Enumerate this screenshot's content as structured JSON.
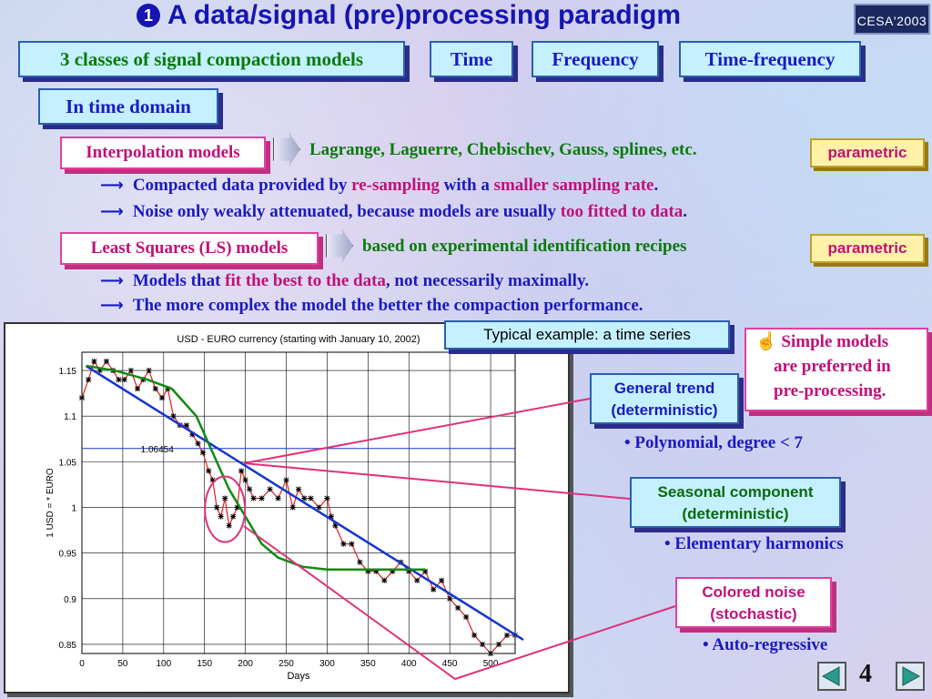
{
  "title": "A data/signal (pre)processing paradigm",
  "title_bullet": "1",
  "badge": "CESA'2003",
  "classes_label": "3 classes of signal compaction models",
  "domains": [
    "Time",
    "Frequency",
    "Time-frequency"
  ],
  "section": "In time domain",
  "interpolation": {
    "label": "Interpolation models",
    "desc": "Lagrange, Laguerre, Chebischev, Gauss, splines, etc.",
    "tag": "parametric",
    "line1": {
      "a": "Compacted data provided by ",
      "b": "re-sampling",
      "c": " with a ",
      "d": "smaller sampling rate",
      "e": "."
    },
    "line2": {
      "a": "Noise only weakly attenuated, because models are usually ",
      "b": "too fitted to data",
      "c": "."
    }
  },
  "ls": {
    "label": "Least Squares (LS) models",
    "desc": "based on experimental identification recipes",
    "tag": "parametric",
    "line1": {
      "a": "Models that ",
      "b": "fit the best to the data",
      "c": ", not necessarily maximally."
    },
    "line2": "The more complex the model the better the compaction performance."
  },
  "arrow_glyph": "⟶",
  "example_label": "Typical example: a time series",
  "simple_note": {
    "icon": "☝",
    "l1": "Simple models",
    "l2": "are preferred in",
    "l3": "pre-processing."
  },
  "components": [
    {
      "l1": "General trend",
      "l2": "(deterministic)",
      "note": "Polynomial, degree < 7"
    },
    {
      "l1": "Seasonal component",
      "l2": "(deterministic)",
      "note": "Elementary harmonics"
    },
    {
      "l1": "Colored noise",
      "l2": "(stochastic)",
      "note": "Auto-regressive"
    }
  ],
  "bullet": "•",
  "page_number": "4",
  "colors": {
    "trend": "#1535d0",
    "data": "#e02020",
    "seasonal": "#108a10",
    "highlight": "#e0307a"
  },
  "chart_data": {
    "type": "line",
    "title": "USD - EURO currency (starting with January 10, 2002)",
    "xlabel": "Days",
    "ylabel": "1 USD = * EURO",
    "xlim": [
      0,
      530
    ],
    "ylim": [
      0.84,
      1.17
    ],
    "xticks": [
      0,
      50,
      100,
      150,
      200,
      250,
      300,
      350,
      400,
      450,
      500
    ],
    "yticks": [
      0.85,
      0.9,
      0.95,
      1,
      1.05,
      1.1,
      1.15
    ],
    "grid": true,
    "reference_line": {
      "y": 1.06454,
      "label": "1.06454"
    },
    "series": [
      {
        "kind": "data",
        "x": [
          0,
          8,
          15,
          22,
          30,
          38,
          45,
          52,
          60,
          68,
          75,
          82,
          90,
          98,
          105,
          112,
          120,
          128,
          135,
          142,
          148,
          155,
          160,
          165,
          170,
          175,
          180,
          185,
          190,
          195,
          200,
          205,
          210,
          220,
          230,
          240,
          250,
          258,
          265,
          272,
          280,
          290,
          300,
          305,
          310,
          320,
          330,
          340,
          350,
          360,
          370,
          380,
          390,
          400,
          410,
          420,
          430,
          440,
          450,
          460,
          470,
          480,
          490,
          500,
          510,
          520,
          530
        ],
        "y": [
          1.12,
          1.14,
          1.16,
          1.15,
          1.16,
          1.15,
          1.14,
          1.14,
          1.15,
          1.13,
          1.14,
          1.15,
          1.13,
          1.12,
          1.13,
          1.1,
          1.09,
          1.09,
          1.08,
          1.07,
          1.06,
          1.04,
          1.03,
          1.0,
          0.99,
          1.01,
          0.98,
          0.99,
          1.0,
          1.04,
          1.03,
          1.02,
          1.01,
          1.01,
          1.02,
          1.01,
          1.03,
          1.0,
          1.02,
          1.01,
          1.01,
          1.0,
          1.01,
          0.99,
          0.98,
          0.96,
          0.96,
          0.94,
          0.93,
          0.93,
          0.92,
          0.93,
          0.94,
          0.93,
          0.92,
          0.93,
          0.91,
          0.92,
          0.9,
          0.89,
          0.88,
          0.86,
          0.85,
          0.84,
          0.85,
          0.86,
          0.86
        ]
      },
      {
        "kind": "trend",
        "x": [
          5,
          540
        ],
        "y": [
          1.155,
          0.855
        ]
      },
      {
        "kind": "seasonal",
        "x": [
          5,
          40,
          80,
          110,
          140,
          160,
          180,
          200,
          220,
          240,
          270,
          300,
          330,
          360,
          390,
          420
        ],
        "y": [
          1.155,
          1.15,
          1.14,
          1.13,
          1.1,
          1.06,
          1.02,
          0.99,
          0.96,
          0.945,
          0.935,
          0.932,
          0.932,
          0.932,
          0.932,
          0.932
        ]
      }
    ]
  }
}
